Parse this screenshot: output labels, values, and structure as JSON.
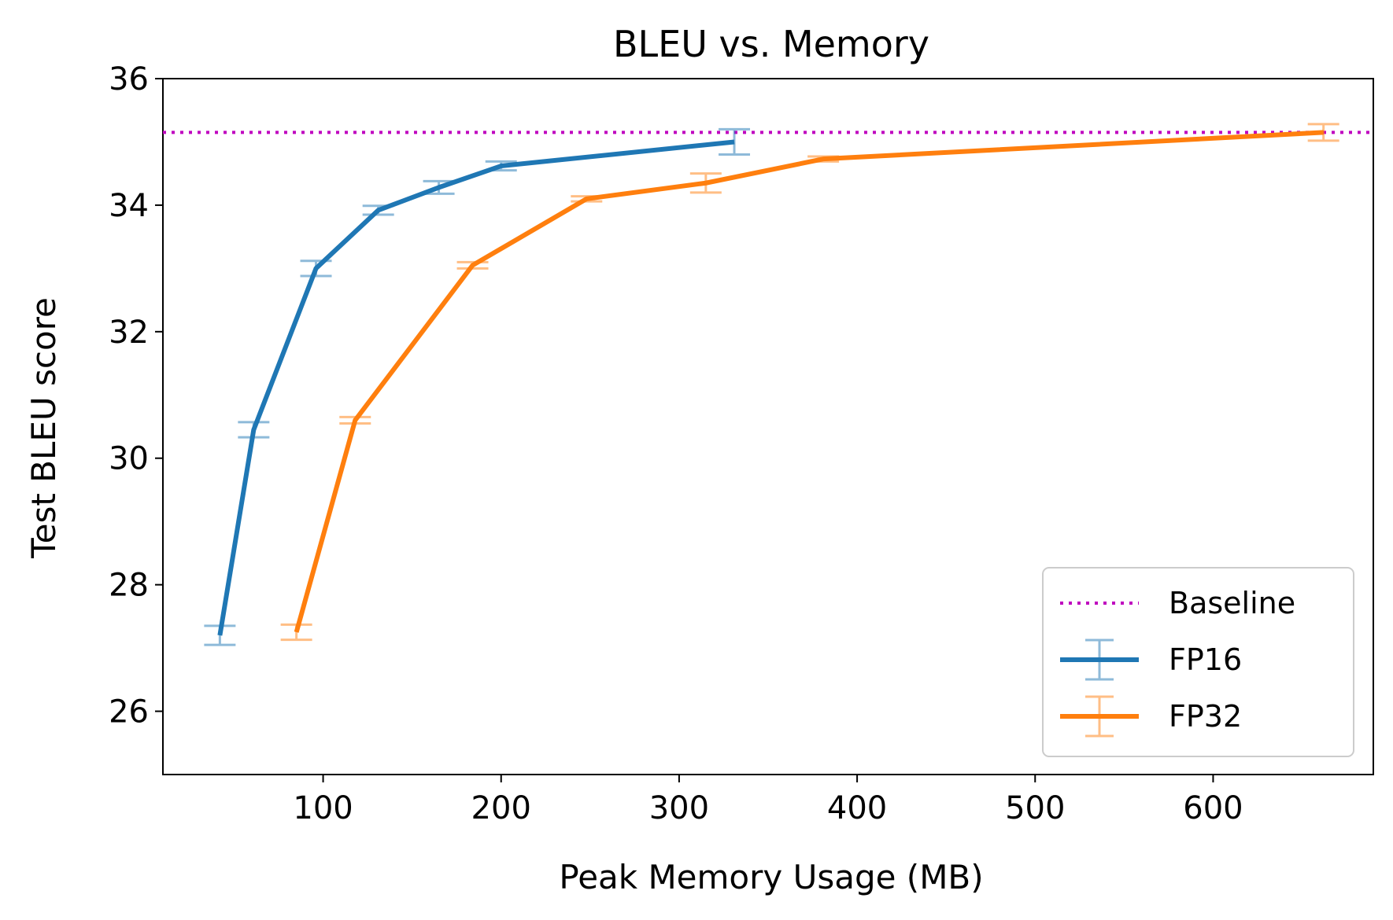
{
  "chart_data": {
    "type": "line",
    "title": "BLEU vs. Memory",
    "xlabel": "Peak Memory Usage (MB)",
    "ylabel": "Test BLEU score",
    "xlim": [
      10,
      690
    ],
    "ylim": [
      25,
      36
    ],
    "xticks": [
      100,
      200,
      300,
      400,
      500,
      600
    ],
    "yticks": [
      26,
      28,
      30,
      32,
      34,
      36
    ],
    "grid": false,
    "legend_position": "lower right",
    "baseline": {
      "name": "Baseline",
      "y": 35.15,
      "color": "#bf00bf",
      "style": "dotted"
    },
    "series": [
      {
        "name": "FP16",
        "color": "#1f77b4",
        "x": [
          42,
          61,
          96,
          131,
          165,
          200,
          331
        ],
        "y": [
          27.2,
          30.45,
          33.0,
          33.92,
          34.28,
          34.62,
          35.0
        ],
        "err": [
          0.15,
          0.12,
          0.12,
          0.07,
          0.1,
          0.07,
          0.2
        ]
      },
      {
        "name": "FP32",
        "color": "#ff7f0e",
        "x": [
          85,
          118,
          184,
          248,
          315,
          381,
          662
        ],
        "y": [
          27.25,
          30.6,
          33.05,
          34.1,
          34.35,
          34.73,
          35.15
        ],
        "err": [
          0.12,
          0.05,
          0.05,
          0.04,
          0.15,
          0.04,
          0.13
        ]
      }
    ]
  }
}
